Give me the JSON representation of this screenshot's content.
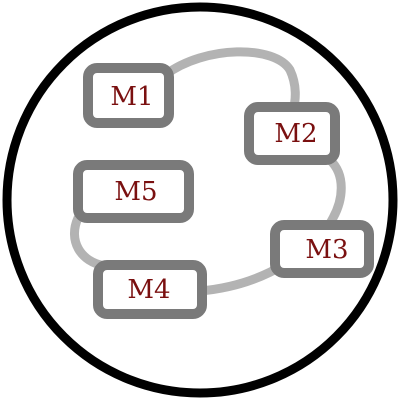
{
  "colors": {
    "outer_circle": "#000000",
    "connector": "#b3b3b3",
    "node_border": "#7a7a7a",
    "node_fill": "#ffffff",
    "label_text": "#7a1010",
    "background": "#ffffff"
  },
  "nodes": [
    {
      "id": "m1",
      "label": "M1"
    },
    {
      "id": "m2",
      "label": "M2"
    },
    {
      "id": "m3",
      "label": "M3"
    },
    {
      "id": "m4",
      "label": "M4"
    },
    {
      "id": "m5",
      "label": "M5"
    }
  ],
  "connections": [
    {
      "from": "m1",
      "to": "m2"
    },
    {
      "from": "m2",
      "to": "m3"
    },
    {
      "from": "m3",
      "to": "m4"
    },
    {
      "from": "m4",
      "to": "m5"
    }
  ]
}
